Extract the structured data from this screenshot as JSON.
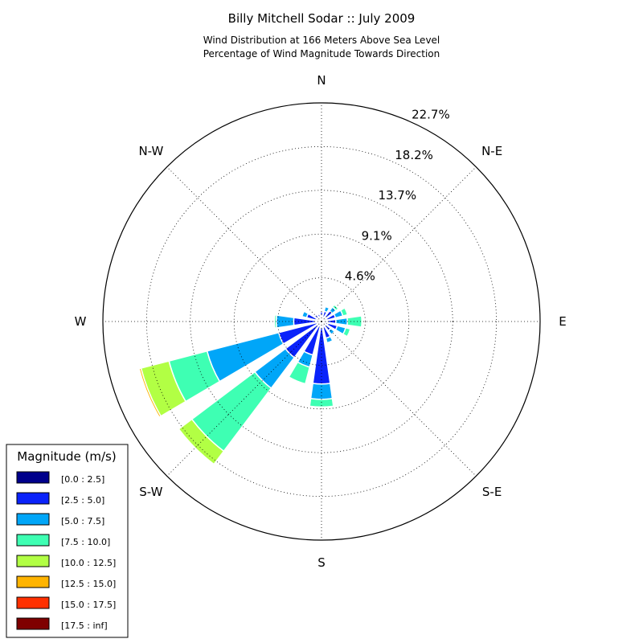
{
  "chart_data": {
    "type": "windrose",
    "title": "Billy Mitchell Sodar :: July 2009",
    "subtitle_lines": [
      "Wind Distribution at 166 Meters Above Sea Level",
      "Percentage of Wind Magnitude Towards Direction"
    ],
    "directions": [
      "N",
      "N-E",
      "E",
      "S-E",
      "S",
      "S-W",
      "W",
      "N-W"
    ],
    "radial_ticks": [
      "4.6%",
      "9.1%",
      "13.7%",
      "18.2%",
      "22.7%"
    ],
    "radial_tick_values": [
      4.55,
      9.1,
      13.65,
      18.2,
      22.75
    ],
    "rmax": 22.75,
    "bin_width_deg": 16,
    "legend": {
      "title": "Magnitude (m/s)",
      "labels": [
        "[0.0 : 2.5]",
        "[2.5 : 5.0]",
        "[5.0 : 7.5]",
        "[7.5 : 10.0]",
        "[10.0 : 12.5]",
        "[12.5 : 15.0]",
        "[15.0 : 17.5]",
        "[17.5 : inf]"
      ],
      "colors": [
        "#00008b",
        "#0a22fa",
        "#00a6f8",
        "#3effb3",
        "#b2ff44",
        "#ffb400",
        "#ff3000",
        "#7f0000"
      ]
    },
    "sectors": [
      {
        "direction_deg": 0,
        "values": [
          0.6,
          0.4,
          0,
          0,
          0,
          0,
          0,
          0
        ]
      },
      {
        "direction_deg": 22.5,
        "values": [
          0.5,
          0.6,
          0.5,
          0,
          0,
          0,
          0,
          0
        ]
      },
      {
        "direction_deg": 45,
        "values": [
          0.6,
          0.8,
          0.5,
          0.3,
          0,
          0,
          0,
          0
        ]
      },
      {
        "direction_deg": 67.5,
        "values": [
          0.6,
          0.9,
          0.8,
          0.5,
          0,
          0,
          0,
          0
        ]
      },
      {
        "direction_deg": 90,
        "values": [
          0.6,
          0.9,
          1.2,
          1.5,
          0,
          0,
          0,
          0
        ]
      },
      {
        "direction_deg": 112.5,
        "values": [
          0.7,
          1.0,
          0.9,
          0.5,
          0,
          0,
          0,
          0
        ]
      },
      {
        "direction_deg": 135,
        "values": [
          0.5,
          0.7,
          0.5,
          0,
          0,
          0,
          0,
          0
        ]
      },
      {
        "direction_deg": 157.5,
        "values": [
          0.6,
          1.2,
          0.5,
          0,
          0,
          0,
          0,
          0
        ]
      },
      {
        "direction_deg": 180,
        "values": [
          0.6,
          5.9,
          1.6,
          0.8,
          0,
          0,
          0,
          0
        ]
      },
      {
        "direction_deg": 202.5,
        "values": [
          0.5,
          3.1,
          1.3,
          1.8,
          0,
          0,
          0,
          0
        ]
      },
      {
        "direction_deg": 225,
        "values": [
          0.5,
          4.2,
          4.0,
          8.2,
          1.7,
          0,
          0,
          0
        ]
      },
      {
        "direction_deg": 247.5,
        "values": [
          0.5,
          4.1,
          7.7,
          4.1,
          3.0,
          0.2,
          0,
          0
        ]
      },
      {
        "direction_deg": 270,
        "values": [
          0.6,
          2.3,
          1.8,
          0.2,
          0,
          0,
          0,
          0
        ]
      },
      {
        "direction_deg": 292.5,
        "values": [
          0.6,
          1.0,
          0.5,
          0,
          0,
          0,
          0,
          0
        ]
      },
      {
        "direction_deg": 315,
        "values": [
          0.5,
          0.4,
          0,
          0,
          0,
          0,
          0,
          0
        ]
      },
      {
        "direction_deg": 337.5,
        "values": [
          0.5,
          0.3,
          0,
          0,
          0,
          0,
          0,
          0
        ]
      }
    ]
  }
}
